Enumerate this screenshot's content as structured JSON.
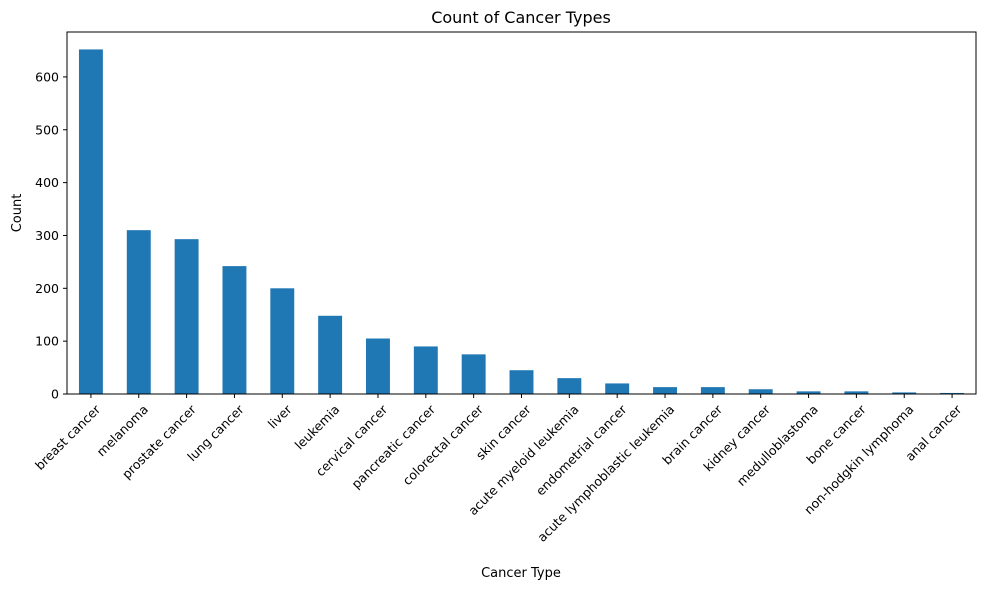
{
  "chart_data": {
    "type": "bar",
    "title": "Count of Cancer Types",
    "xlabel": "Cancer Type",
    "ylabel": "Count",
    "categories": [
      "breast cancer",
      "melanoma",
      "prostate cancer",
      "lung cancer",
      "liver",
      "leukemia",
      "cervical cancer",
      "pancreatic cancer",
      "colorectal cancer",
      "skin cancer",
      "acute myeloid leukemia",
      "endometrial cancer",
      "acute lymphoblastic leukemia",
      "brain cancer",
      "kidney cancer",
      "medulloblastoma",
      "bone cancer",
      "non-hodgkin lymphoma",
      "anal cancer"
    ],
    "values": [
      652,
      310,
      293,
      242,
      200,
      148,
      105,
      90,
      75,
      45,
      30,
      20,
      13,
      13,
      9,
      5,
      5,
      3,
      2
    ],
    "ylim": [
      0,
      685
    ],
    "yticks": [
      0,
      100,
      200,
      300,
      400,
      500,
      600
    ],
    "grid": false,
    "legend": "none",
    "bar_color": "#1f77b4"
  }
}
